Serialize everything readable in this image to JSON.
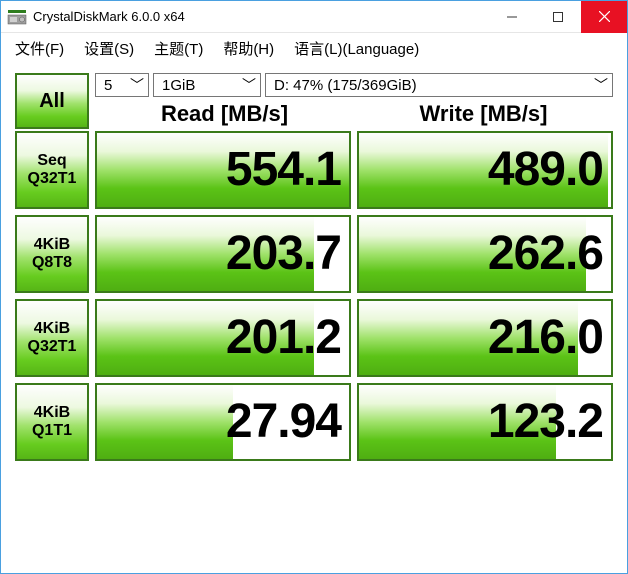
{
  "window": {
    "title": "CrystalDiskMark 6.0.0 x64"
  },
  "menu": {
    "file": "文件(F)",
    "setup": "设置(S)",
    "theme": "主题(T)",
    "help": "帮助(H)",
    "lang": "语言(L)(Language)"
  },
  "controls": {
    "all_label": "All",
    "iterations": "5",
    "test_size": "1GiB",
    "drive": "D: 47% (175/369GiB)"
  },
  "headers": {
    "read": "Read [MB/s]",
    "write": "Write [MB/s]"
  },
  "tests": [
    {
      "label1": "Seq",
      "label2": "Q32T1",
      "read": "554.1",
      "read_fill_pct": 100,
      "write": "489.0",
      "write_fill_pct": 99
    },
    {
      "label1": "4KiB",
      "label2": "Q8T8",
      "read": "203.7",
      "read_fill_pct": 86,
      "write": "262.6",
      "write_fill_pct": 90
    },
    {
      "label1": "4KiB",
      "label2": "Q32T1",
      "read": "201.2",
      "read_fill_pct": 86,
      "write": "216.0",
      "write_fill_pct": 87
    },
    {
      "label1": "4KiB",
      "label2": "Q1T1",
      "read": "27.94",
      "read_fill_pct": 54,
      "write": "123.2",
      "write_fill_pct": 78
    }
  ],
  "colors": {
    "window_border": "#4aa0e0",
    "button_border": "#3a7a1a",
    "close_bg": "#e81123",
    "grad_top": "#fefefe",
    "grad_mid": "#a0e26b",
    "grad_bot": "#56b516"
  }
}
